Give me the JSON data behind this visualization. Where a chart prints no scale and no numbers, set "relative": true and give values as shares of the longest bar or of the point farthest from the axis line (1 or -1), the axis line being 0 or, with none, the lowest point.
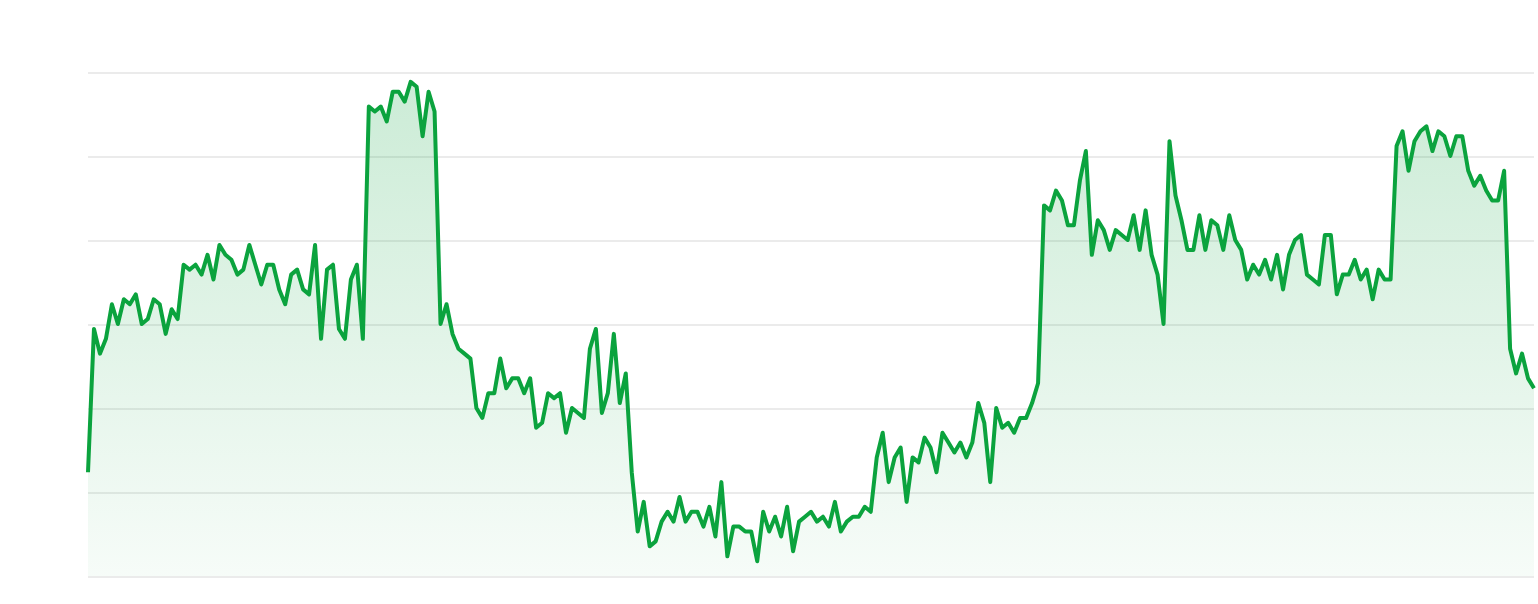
{
  "chart_data": {
    "type": "area",
    "relative": true,
    "grid": "y",
    "color": "#0ba33e",
    "categories": [
      null,
      null,
      null,
      null,
      null,
      null,
      null,
      null,
      null,
      null,
      null,
      null,
      null,
      null,
      null,
      null,
      null,
      null,
      null,
      null,
      null,
      null,
      null,
      null,
      null,
      null,
      null,
      null,
      null,
      null,
      null,
      null,
      null,
      null,
      null,
      null,
      null,
      null,
      null,
      null,
      null,
      null,
      null,
      null,
      null,
      null,
      null,
      null,
      null,
      null,
      null,
      null,
      null,
      null,
      null,
      null,
      null,
      null,
      null,
      null,
      null,
      null,
      null,
      null,
      null,
      null,
      null,
      null,
      null,
      null,
      null,
      null,
      null,
      null,
      null,
      null,
      null,
      null,
      null,
      null,
      null,
      null,
      null,
      null,
      null,
      null,
      null,
      null,
      null,
      null,
      null,
      null,
      null,
      null,
      null,
      null,
      null,
      null,
      null,
      null,
      null,
      null,
      null,
      null,
      null,
      null,
      null,
      null,
      null,
      null,
      null,
      null,
      null,
      null,
      null,
      null,
      null,
      null,
      null,
      null,
      null,
      null,
      null,
      null,
      null,
      null,
      null,
      null,
      null,
      null,
      null,
      null,
      null,
      null,
      null,
      null,
      null,
      null,
      null,
      null,
      null,
      null,
      null,
      null,
      null,
      null,
      null,
      null,
      null,
      null,
      null,
      null,
      null,
      null,
      null,
      null,
      null,
      null,
      null,
      null,
      null,
      null,
      null,
      null,
      null,
      null,
      null,
      null,
      null,
      null,
      null,
      null,
      null,
      null,
      null,
      null,
      null,
      null,
      null,
      null,
      null,
      null,
      null,
      null,
      null,
      null,
      null,
      null,
      null,
      null,
      null,
      null,
      null,
      null,
      null,
      null,
      null,
      null,
      null,
      null,
      null,
      null,
      null,
      null,
      null,
      null,
      null,
      null,
      null,
      null,
      null,
      null,
      null,
      null,
      null,
      null,
      null,
      null,
      null,
      null,
      null,
      null,
      null,
      null,
      null,
      null,
      null,
      null,
      null,
      null,
      null,
      null,
      null,
      null,
      null,
      null,
      null,
      null,
      null,
      null,
      null,
      null,
      null
    ],
    "values": [
      0.21,
      0.5,
      0.45,
      0.48,
      0.55,
      0.51,
      0.56,
      0.55,
      0.57,
      0.51,
      0.52,
      0.56,
      0.55,
      0.49,
      0.54,
      0.52,
      0.63,
      0.62,
      0.63,
      0.61,
      0.65,
      0.6,
      0.67,
      0.65,
      0.64,
      0.61,
      0.62,
      0.67,
      0.63,
      0.59,
      0.63,
      0.63,
      0.58,
      0.55,
      0.61,
      0.62,
      0.58,
      0.57,
      0.67,
      0.48,
      0.62,
      0.63,
      0.5,
      0.48,
      0.6,
      0.63,
      0.48,
      0.95,
      0.94,
      0.95,
      0.92,
      0.98,
      0.98,
      0.96,
      1,
      0.99,
      0.89,
      0.98,
      0.94,
      0.51,
      0.55,
      0.49,
      0.46,
      0.45,
      0.44,
      0.34,
      0.32,
      0.37,
      0.37,
      0.44,
      0.38,
      0.4,
      0.4,
      0.37,
      0.4,
      0.3,
      0.31,
      0.37,
      0.36,
      0.37,
      0.29,
      0.34,
      0.33,
      0.32,
      0.46,
      0.5,
      0.33,
      0.37,
      0.49,
      0.35,
      0.41,
      0.21,
      0.09,
      0.15,
      0.06,
      0.07,
      0.11,
      0.13,
      0.11,
      0.16,
      0.11,
      0.13,
      0.13,
      0.1,
      0.14,
      0.08,
      0.19,
      0.04,
      0.1,
      0.1,
      0.09,
      0.09,
      0.03,
      0.13,
      0.09,
      0.12,
      0.08,
      0.14,
      0.05,
      0.11,
      0.12,
      0.13,
      0.11,
      0.12,
      0.1,
      0.15,
      0.09,
      0.11,
      0.12,
      0.12,
      0.14,
      0.13,
      0.24,
      0.29,
      0.19,
      0.24,
      0.26,
      0.15,
      0.24,
      0.23,
      0.28,
      0.26,
      0.21,
      0.29,
      0.27,
      0.25,
      0.27,
      0.24,
      0.27,
      0.35,
      0.31,
      0.19,
      0.34,
      0.3,
      0.31,
      0.29,
      0.32,
      0.32,
      0.35,
      0.39,
      0.75,
      0.74,
      0.78,
      0.76,
      0.71,
      0.71,
      0.8,
      0.86,
      0.65,
      0.72,
      0.7,
      0.66,
      0.7,
      0.69,
      0.68,
      0.73,
      0.66,
      0.74,
      0.65,
      0.61,
      0.51,
      0.88,
      0.77,
      0.72,
      0.66,
      0.66,
      0.73,
      0.66,
      0.72,
      0.71,
      0.66,
      0.73,
      0.68,
      0.66,
      0.6,
      0.63,
      0.61,
      0.64,
      0.6,
      0.65,
      0.58,
      0.65,
      0.68,
      0.69,
      0.61,
      0.6,
      0.59,
      0.69,
      0.69,
      0.57,
      0.61,
      0.61,
      0.64,
      0.6,
      0.62,
      0.56,
      0.62,
      0.6,
      0.6,
      0.87,
      0.9,
      0.82,
      0.88,
      0.9,
      0.91,
      0.86,
      0.9,
      0.89,
      0.85,
      0.89,
      0.89,
      0.82,
      0.79,
      0.81,
      0.78,
      0.76,
      0.76,
      0.82,
      0.46,
      0.41,
      0.45,
      0.4,
      0.38
    ]
  }
}
